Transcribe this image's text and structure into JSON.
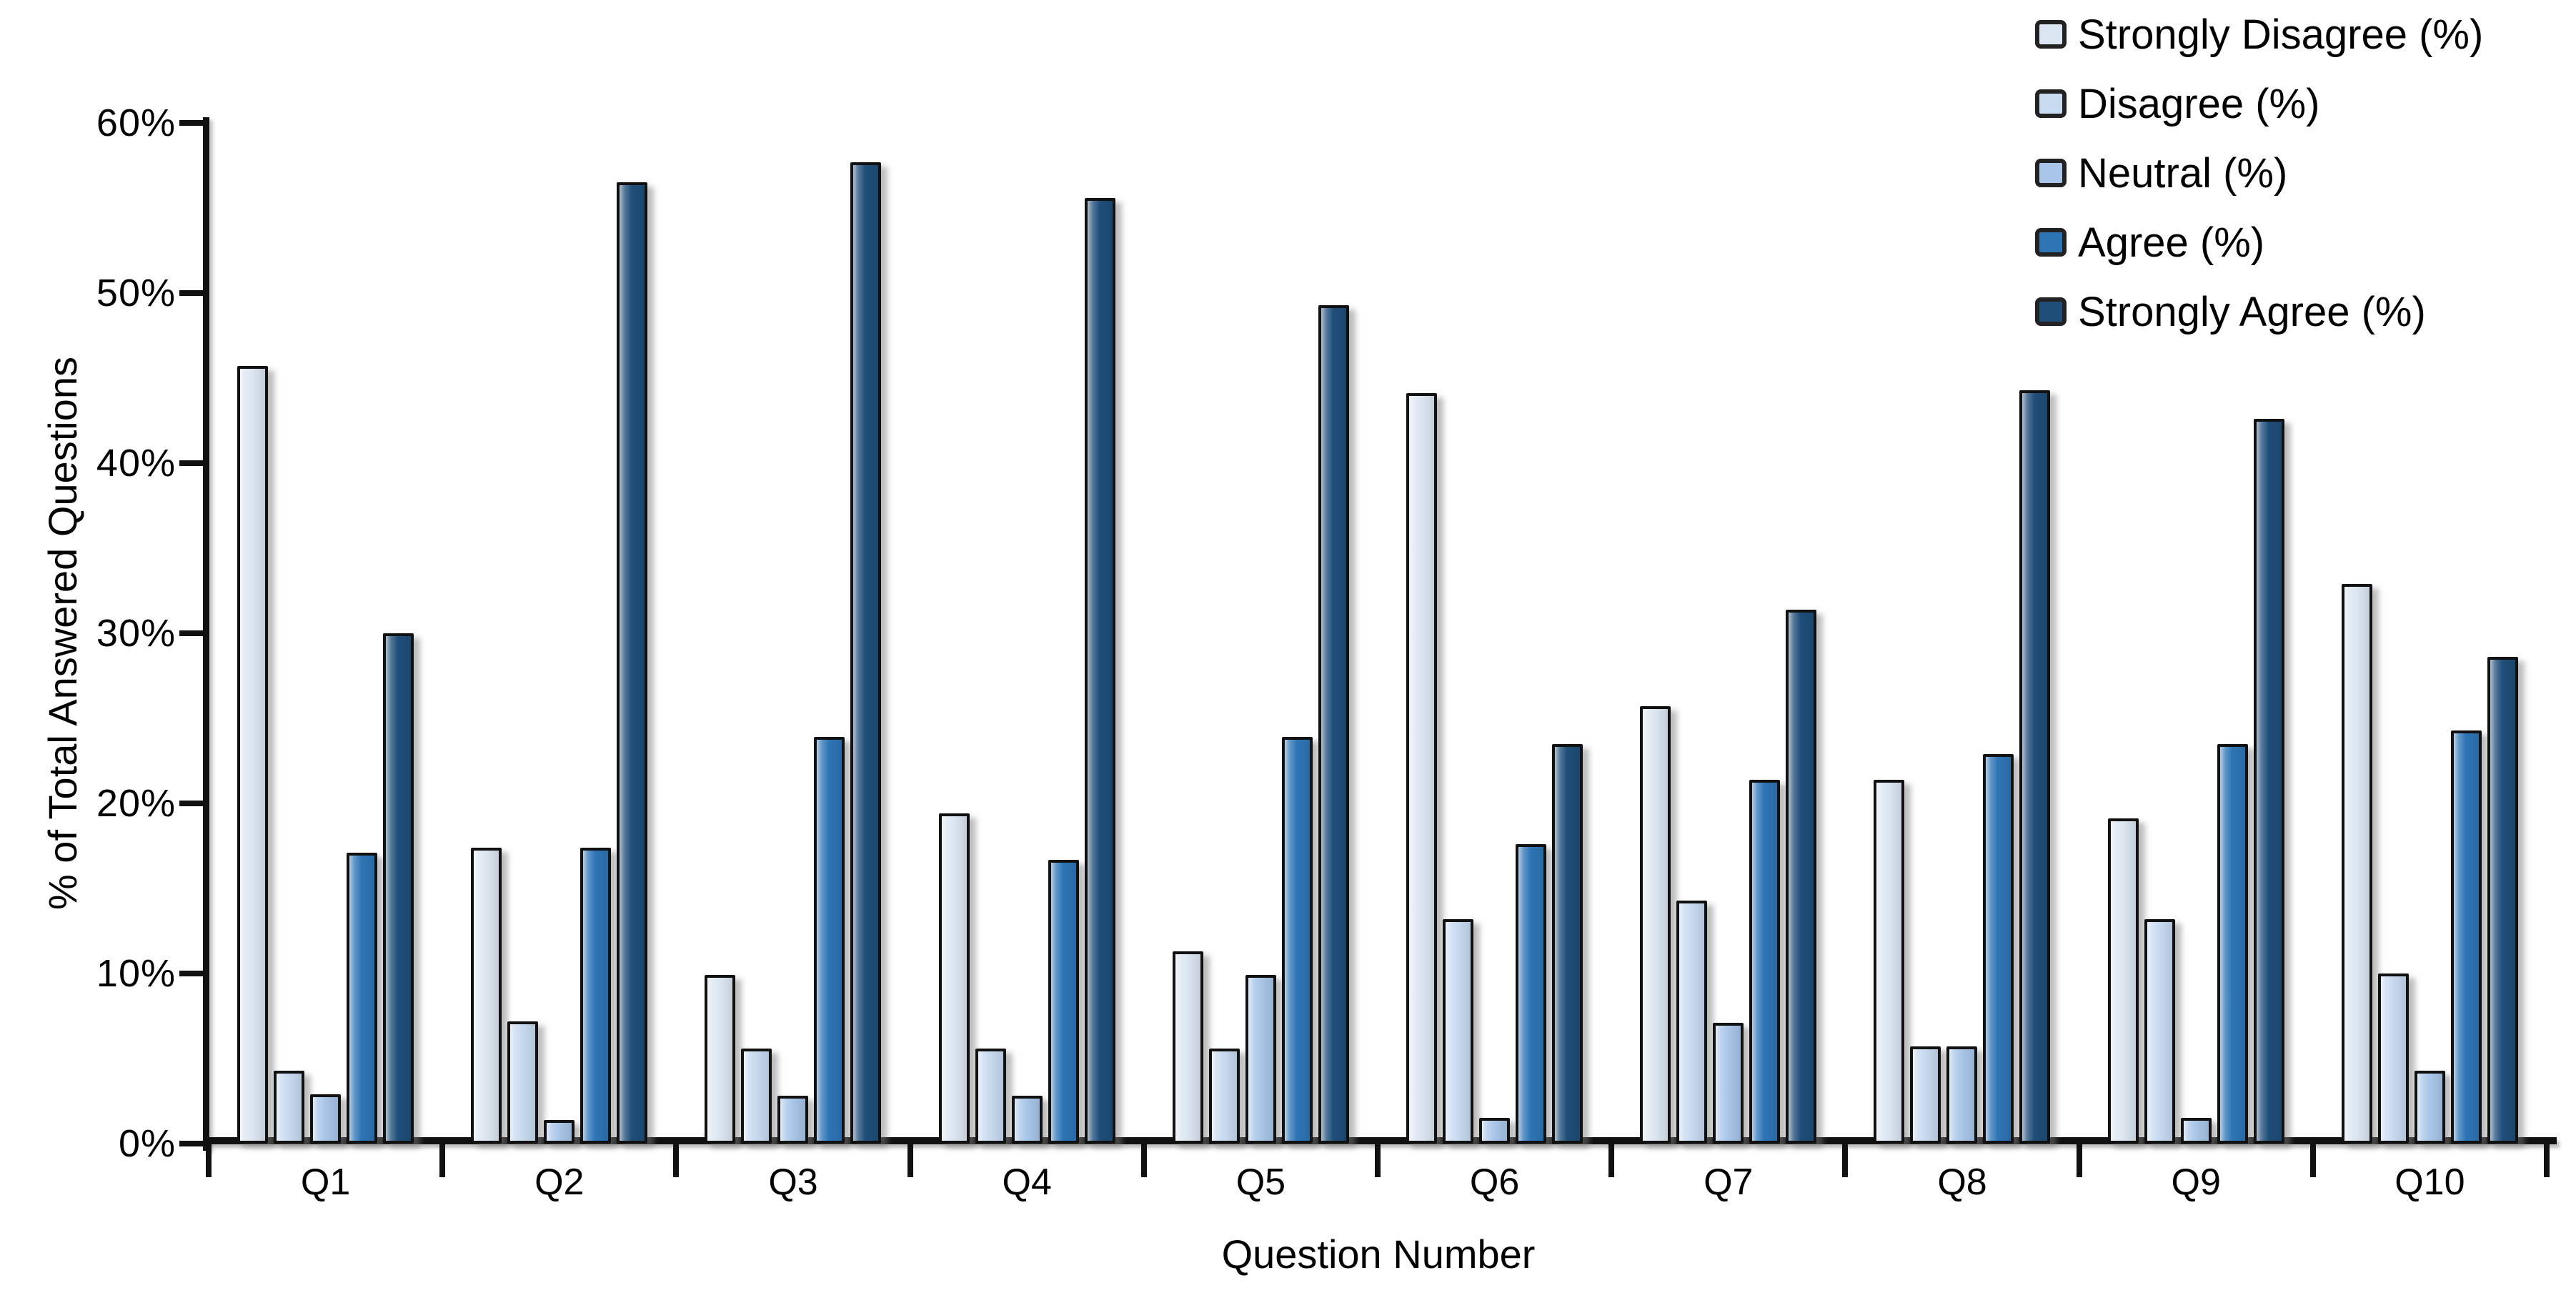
{
  "chart_data": {
    "type": "bar",
    "title": "",
    "xlabel": "Question Number",
    "ylabel": "% of Total Answered Questions",
    "categories": [
      "Q1",
      "Q2",
      "Q3",
      "Q4",
      "Q5",
      "Q6",
      "Q7",
      "Q8",
      "Q9",
      "Q10"
    ],
    "series": [
      {
        "name": "Strongly Disagree (%)",
        "color": "#dce6f1",
        "values": [
          45.7,
          17.4,
          9.9,
          19.4,
          11.3,
          44.1,
          25.7,
          21.4,
          19.1,
          32.9
        ]
      },
      {
        "name": "Disagree (%)",
        "color": "#c8daf0",
        "values": [
          4.3,
          7.2,
          5.6,
          5.6,
          5.6,
          13.2,
          14.3,
          5.7,
          13.2,
          10.0
        ]
      },
      {
        "name": "Neutral (%)",
        "color": "#a9c6e8",
        "values": [
          2.9,
          1.4,
          2.8,
          2.8,
          9.9,
          1.5,
          7.1,
          5.7,
          1.5,
          4.3
        ]
      },
      {
        "name": "Agree (%)",
        "color": "#2e75b6",
        "values": [
          17.1,
          17.4,
          23.9,
          16.7,
          23.9,
          17.6,
          21.4,
          22.9,
          23.5,
          24.3
        ]
      },
      {
        "name": "Strongly Agree (%)",
        "color": "#1f4e79",
        "values": [
          30.0,
          56.5,
          57.7,
          55.6,
          49.3,
          23.5,
          31.4,
          44.3,
          42.6,
          28.6
        ]
      }
    ],
    "ylim": [
      0,
      60
    ],
    "y_tick_step": 10,
    "y_tick_labels": [
      "0%",
      "10%",
      "20%",
      "30%",
      "40%",
      "50%",
      "60%"
    ],
    "grid": false,
    "legend_position": "top-right",
    "axis_color": "#111111",
    "text_color": "#000000"
  }
}
